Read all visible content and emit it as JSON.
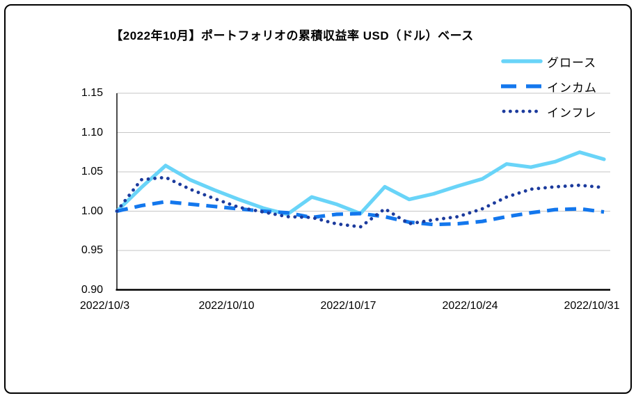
{
  "chart_data": {
    "type": "line",
    "title": "【2022年10月】ポートフォリオの累積収益率 USD（ドル）ベース",
    "xlabel": "",
    "ylabel": "",
    "ylim": [
      0.9,
      1.15
    ],
    "y_tick_step": 0.05,
    "grid": "horizontal",
    "legend_position": "top-right",
    "x_dates": [
      "2022/10/3",
      "2022/10/4",
      "2022/10/5",
      "2022/10/6",
      "2022/10/7",
      "2022/10/10",
      "2022/10/11",
      "2022/10/12",
      "2022/10/13",
      "2022/10/14",
      "2022/10/17",
      "2022/10/18",
      "2022/10/19",
      "2022/10/20",
      "2022/10/21",
      "2022/10/24",
      "2022/10/25",
      "2022/10/26",
      "2022/10/27",
      "2022/10/28",
      "2022/10/31"
    ],
    "x_tick_labels": [
      "2022/10/3",
      "2022/10/10",
      "2022/10/17",
      "2022/10/24",
      "2022/10/31"
    ],
    "y_tick_labels": [
      "1.15",
      "1.10",
      "1.05",
      "1.00",
      "0.95",
      "0.90"
    ],
    "series": [
      {
        "name": "グロース",
        "style": "solid",
        "color": "#69D4F8",
        "values": [
          1.0,
          1.03,
          1.058,
          1.04,
          1.027,
          1.015,
          1.004,
          0.996,
          1.018,
          1.009,
          0.997,
          1.031,
          1.015,
          1.022,
          1.032,
          1.041,
          1.06,
          1.056,
          1.063,
          1.075,
          1.066
        ]
      },
      {
        "name": "インカム",
        "style": "dashed",
        "color": "#1377ED",
        "values": [
          1.0,
          1.007,
          1.012,
          1.009,
          1.006,
          1.003,
          1.0,
          0.998,
          0.992,
          0.996,
          0.997,
          0.993,
          0.986,
          0.983,
          0.984,
          0.987,
          0.993,
          0.998,
          1.002,
          1.003,
          0.999
        ]
      },
      {
        "name": "インフレ",
        "style": "dotted",
        "color": "#1C3B9D",
        "values": [
          1.0,
          1.04,
          1.043,
          1.028,
          1.016,
          1.005,
          0.999,
          0.993,
          0.992,
          0.984,
          0.98,
          1.003,
          0.984,
          0.989,
          0.993,
          1.003,
          1.018,
          1.028,
          1.031,
          1.033,
          1.03
        ]
      }
    ],
    "axis_color": "#000000",
    "gridline_color": "#C6C6C6"
  }
}
